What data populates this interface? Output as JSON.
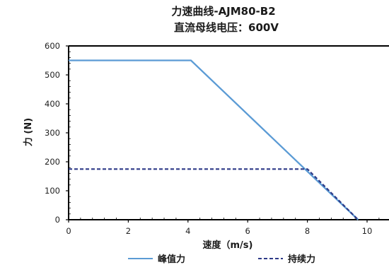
{
  "chart_data": {
    "type": "line",
    "title": "力速曲线-AJM80-B2",
    "subtitle": "直流母线电压：600V",
    "xlabel": "速度（m/s)",
    "ylabel": "力 (N)",
    "xlim": [
      0,
      11
    ],
    "ylim": [
      0,
      600
    ],
    "x_ticks": [
      "0",
      "2",
      "4",
      "6",
      "8",
      "10"
    ],
    "y_ticks": [
      "0",
      "100",
      "200",
      "300",
      "400",
      "500",
      "600"
    ],
    "grid": false,
    "legend_position": "bottom",
    "series": [
      {
        "name": "峰值力",
        "color": "#5b9bd5",
        "style": "solid",
        "points": [
          [
            0,
            550
          ],
          [
            4.1,
            550
          ],
          [
            9.7,
            0
          ]
        ]
      },
      {
        "name": "持续力",
        "color": "#2e3a87",
        "style": "dashed",
        "points": [
          [
            0,
            175
          ],
          [
            8.0,
            175
          ],
          [
            9.7,
            0
          ]
        ]
      }
    ]
  }
}
